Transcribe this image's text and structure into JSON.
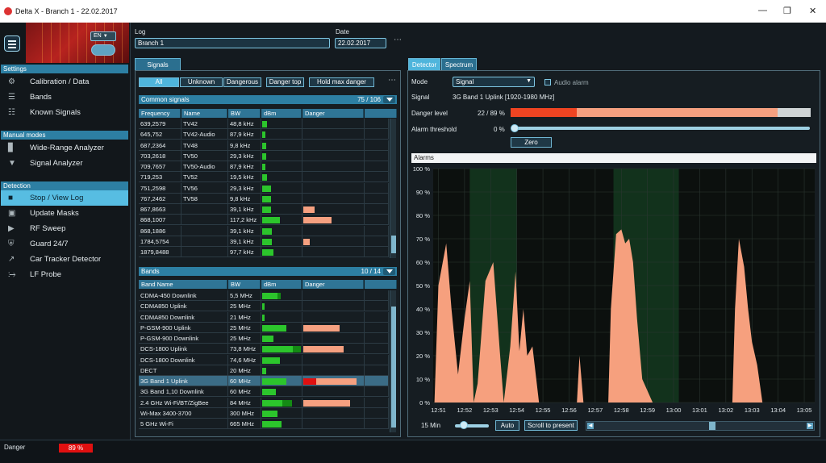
{
  "window": {
    "title": "Delta X - Branch 1 - 22.02.2017"
  },
  "sidebar": {
    "language": "EN",
    "sections": [
      {
        "title": "Settings",
        "items": [
          {
            "label": "Calibration / Data",
            "icon": "gear-icon"
          },
          {
            "label": "Bands",
            "icon": "stack-icon"
          },
          {
            "label": "Known Signals",
            "icon": "list-icon"
          }
        ]
      },
      {
        "title": "Manual modes",
        "items": [
          {
            "label": "Wide-Range Analyzer",
            "icon": "bar-chart-icon"
          },
          {
            "label": "Signal Analyzer",
            "icon": "antenna-icon"
          }
        ]
      },
      {
        "title": "Detection",
        "items": [
          {
            "label": "Stop / View Log",
            "icon": "stop-icon",
            "active": true
          },
          {
            "label": "Update Masks",
            "icon": "image-icon"
          },
          {
            "label": "RF Sweep",
            "icon": "play-icon"
          },
          {
            "label": "Guard 24/7",
            "icon": "shield-icon"
          },
          {
            "label": "Car Tracker Detector",
            "icon": "trend-icon"
          },
          {
            "label": "LF Probe",
            "icon": "probe-icon"
          }
        ]
      }
    ]
  },
  "log": {
    "label": "Log",
    "value": "Branch 1",
    "date_label": "Date",
    "date_value": "22.02.2017"
  },
  "signals": {
    "tab": "Signals",
    "filters": [
      "All",
      "Unknown",
      "Dangerous",
      "Danger top",
      "Hold max danger"
    ],
    "common": {
      "title": "Common signals",
      "count": "75 / 106",
      "columns": [
        "Frequency",
        "Name",
        "BW",
        "dBm",
        "Danger"
      ],
      "rows": [
        {
          "f": "639,2579",
          "n": "TV42",
          "bw": "48,8 kHz",
          "dbm": 0.12,
          "danger": 0
        },
        {
          "f": "645,752",
          "n": "TV42-Audio",
          "bw": "87,9 kHz",
          "dbm": 0.08,
          "danger": 0
        },
        {
          "f": "687,2364",
          "n": "TV48",
          "bw": "9,8 kHz",
          "dbm": 0.1,
          "danger": 0
        },
        {
          "f": "703,2618",
          "n": "TV50",
          "bw": "29,3 kHz",
          "dbm": 0.1,
          "danger": 0
        },
        {
          "f": "709,7657",
          "n": "TV50-Audio",
          "bw": "87,9 kHz",
          "dbm": 0.08,
          "danger": 0
        },
        {
          "f": "719,253",
          "n": "TV52",
          "bw": "19,5 kHz",
          "dbm": 0.12,
          "danger": 0
        },
        {
          "f": "751,2598",
          "n": "TV56",
          "bw": "29,3 kHz",
          "dbm": 0.22,
          "danger": 0
        },
        {
          "f": "767,2462",
          "n": "TV58",
          "bw": "9,8 kHz",
          "dbm": 0.22,
          "danger": 0
        },
        {
          "f": "867,8663",
          "n": "",
          "bw": "39,1 kHz",
          "dbm": 0.22,
          "danger": 0.26
        },
        {
          "f": "868,1007",
          "n": "",
          "bw": "117,2 kHz",
          "dbm": 0.45,
          "danger": 0.66
        },
        {
          "f": "868,1886",
          "n": "",
          "bw": "39,1 kHz",
          "dbm": 0.24,
          "danger": 0
        },
        {
          "f": "1784,5754",
          "n": "",
          "bw": "39,1 kHz",
          "dbm": 0.26,
          "danger": 0.16
        },
        {
          "f": "1879,8488",
          "n": "",
          "bw": "97,7 kHz",
          "dbm": 0.3,
          "danger": 0
        }
      ]
    },
    "bands": {
      "title": "Bands",
      "count": "10 / 14",
      "columns": [
        "Band Name",
        "BW",
        "dBm",
        "Danger"
      ],
      "rows": [
        {
          "n": "CDMA-450 Downlink",
          "bw": "5,5 MHz",
          "dbm": 0.4,
          "dbm2": 0.15,
          "danger": 0
        },
        {
          "n": "CDMA850 Uplink",
          "bw": "25 MHz",
          "dbm": 0.06,
          "danger": 0
        },
        {
          "n": "CDMA850 Downlink",
          "bw": "21 MHz",
          "dbm": 0.06,
          "danger": 0
        },
        {
          "n": "P-GSM-900 Uplink",
          "bw": "25 MHz",
          "dbm": 0.62,
          "danger": 0.85
        },
        {
          "n": "P-GSM-900 Downlink",
          "bw": "25 MHz",
          "dbm": 0.3,
          "danger": 0
        },
        {
          "n": "DCS-1800 Uplink",
          "bw": "73,8 MHz",
          "dbm": 0.8,
          "dbm2": 0.4,
          "danger": 0.95
        },
        {
          "n": "DCS-1800 Downlink",
          "bw": "74,6 MHz",
          "dbm": 0.45,
          "danger": 0
        },
        {
          "n": "DECT",
          "bw": "20 MHz",
          "dbm": 0.1,
          "danger": 0
        },
        {
          "n": "3G Band 1 Uplink",
          "bw": "60 MHz",
          "dbm": 0.62,
          "danger": 1.25,
          "danger_red": 0.3,
          "hl": true
        },
        {
          "n": "3G Band 1,10 Downlink",
          "bw": "60 MHz",
          "dbm": 0.35,
          "danger": 0
        },
        {
          "n": "2.4 GHz Wi-Fi/BT/ZigBee",
          "bw": "84 MHz",
          "dbm": 0.52,
          "dbm2": 0.5,
          "danger": 1.1
        },
        {
          "n": "Wi-Max 3400-3700",
          "bw": "300 MHz",
          "dbm": 0.4,
          "danger": 0
        },
        {
          "n": "5 GHz Wi-Fi",
          "bw": "665 MHz",
          "dbm": 0.5,
          "danger": 0
        }
      ]
    }
  },
  "detector": {
    "tabs": [
      "Detector",
      "Spectrum"
    ],
    "mode_label": "Mode",
    "mode_value": "Signal",
    "audio_alarm": "Audio alarm",
    "signal_label": "Signal",
    "signal_value": "3G Band 1 Uplink [1920-1980 MHz]",
    "danger_label": "Danger level",
    "danger_value": "22 / 89 %",
    "danger_current": 0.22,
    "danger_max": 0.89,
    "threshold_label": "Alarm threshold",
    "threshold_value": "0 %",
    "zero_button": "Zero",
    "alarms_title": "Alarms",
    "zoom_label": "15 Min",
    "auto_button": "Auto",
    "scroll_button": "Scroll to present"
  },
  "chart_data": {
    "type": "area",
    "title": "Alarms",
    "y_ticks": [
      "100 %",
      "90 %",
      "80 %",
      "70 %",
      "60 %",
      "50 %",
      "40 %",
      "30 %",
      "20 %",
      "10 %",
      "0 %"
    ],
    "x_ticks": [
      "12:51",
      "12:52",
      "12:53",
      "12:54",
      "12:55",
      "12:56",
      "12:57",
      "12:58",
      "12:59",
      "13:00",
      "13:01",
      "13:02",
      "13:03",
      "13:04",
      "13:05"
    ],
    "ylim": [
      0,
      100
    ],
    "xlim_minutes": [
      12.8,
      27.4
    ],
    "alarm_spans_minutes": [
      [
        14.2,
        16.0
      ],
      [
        19.7,
        22.2
      ],
      [
        27.6,
        29.7
      ]
    ],
    "series": [
      {
        "points": [
          [
            12.85,
            0
          ],
          [
            13.0,
            50
          ],
          [
            13.3,
            68
          ],
          [
            13.5,
            40
          ],
          [
            13.75,
            12
          ],
          [
            14.0,
            36
          ],
          [
            14.2,
            52
          ],
          [
            14.35,
            0
          ],
          [
            14.5,
            8
          ],
          [
            14.8,
            52
          ],
          [
            15.1,
            60
          ],
          [
            15.35,
            22
          ],
          [
            15.5,
            0
          ],
          [
            15.75,
            24
          ],
          [
            15.95,
            56
          ],
          [
            16.1,
            22
          ],
          [
            16.25,
            40
          ],
          [
            16.4,
            20
          ],
          [
            16.6,
            24
          ],
          [
            16.85,
            0
          ]
        ]
      },
      {
        "points": [
          [
            18.3,
            0
          ],
          [
            18.4,
            20
          ],
          [
            18.55,
            0
          ]
        ]
      },
      {
        "points": [
          [
            19.5,
            0
          ],
          [
            19.6,
            40
          ],
          [
            19.8,
            72
          ],
          [
            20.0,
            74
          ],
          [
            20.15,
            68
          ],
          [
            20.3,
            70
          ],
          [
            20.45,
            60
          ],
          [
            20.6,
            36
          ],
          [
            20.8,
            10
          ],
          [
            21.2,
            0
          ]
        ]
      },
      {
        "points": [
          [
            24.25,
            0
          ],
          [
            24.35,
            40
          ],
          [
            24.5,
            70
          ],
          [
            24.7,
            58
          ],
          [
            24.85,
            40
          ],
          [
            25.0,
            26
          ],
          [
            25.2,
            16
          ],
          [
            25.4,
            0
          ]
        ]
      }
    ]
  },
  "status": {
    "label": "Danger",
    "value": "89 %"
  }
}
